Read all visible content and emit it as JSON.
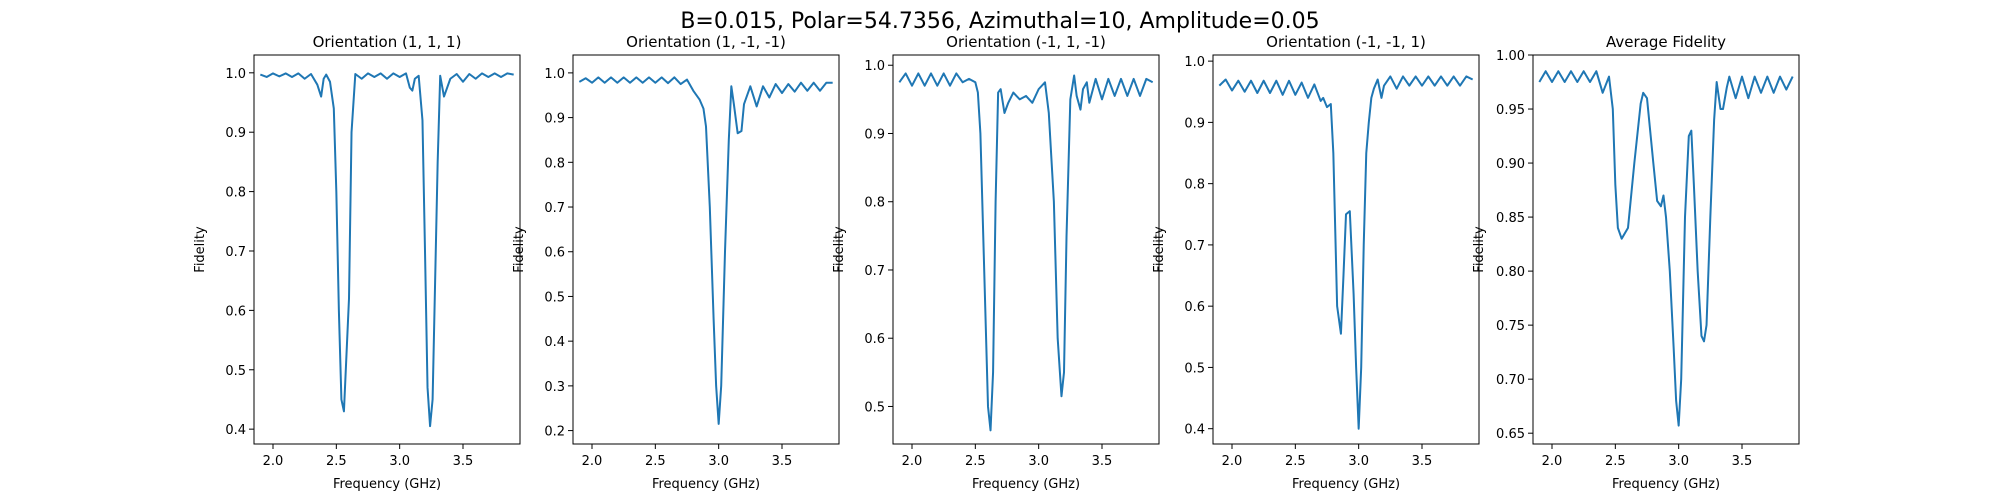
{
  "suptitle": "B=0.015, Polar=54.7356, Azimuthal=10, Amplitude=0.05",
  "line_color": "#1f77b4",
  "chart_data": [
    {
      "type": "line",
      "title": "Orientation (1, 1, 1)",
      "xlabel": "Frequency (GHz)",
      "ylabel": "Fidelity",
      "xlim": [
        1.85,
        3.95
      ],
      "ylim": [
        0.375,
        1.03
      ],
      "xticks": [
        2.0,
        2.5,
        3.0,
        3.5
      ],
      "yticks": [
        0.4,
        0.5,
        0.6,
        0.7,
        0.8,
        0.9,
        1.0
      ],
      "ytick_decimals": 1,
      "series": [
        {
          "x": [
            1.9,
            1.95,
            2.0,
            2.05,
            2.1,
            2.15,
            2.2,
            2.25,
            2.3,
            2.35,
            2.38,
            2.4,
            2.42,
            2.45,
            2.48,
            2.5,
            2.52,
            2.54,
            2.56,
            2.6,
            2.62,
            2.65,
            2.7,
            2.75,
            2.8,
            2.85,
            2.9,
            2.95,
            3.0,
            3.05,
            3.08,
            3.1,
            3.12,
            3.15,
            3.18,
            3.2,
            3.22,
            3.24,
            3.26,
            3.3,
            3.32,
            3.35,
            3.4,
            3.45,
            3.5,
            3.55,
            3.6,
            3.65,
            3.7,
            3.75,
            3.8,
            3.85,
            3.9
          ],
          "y": [
            0.997,
            0.993,
            0.999,
            0.994,
            0.999,
            0.993,
            0.999,
            0.99,
            0.998,
            0.98,
            0.96,
            0.99,
            0.997,
            0.985,
            0.94,
            0.8,
            0.6,
            0.45,
            0.43,
            0.62,
            0.9,
            0.998,
            0.99,
            0.999,
            0.993,
            0.999,
            0.99,
            0.999,
            0.993,
            0.999,
            0.975,
            0.97,
            0.99,
            0.995,
            0.92,
            0.7,
            0.47,
            0.405,
            0.45,
            0.85,
            0.995,
            0.96,
            0.99,
            0.998,
            0.985,
            0.998,
            0.99,
            0.999,
            0.993,
            0.999,
            0.993,
            0.999,
            0.997
          ]
        }
      ]
    },
    {
      "type": "line",
      "title": "Orientation (1, -1, -1)",
      "xlabel": "Frequency (GHz)",
      "ylabel": "Fidelity",
      "xlim": [
        1.85,
        3.95
      ],
      "ylim": [
        0.17,
        1.04
      ],
      "xticks": [
        2.0,
        2.5,
        3.0,
        3.5
      ],
      "yticks": [
        0.2,
        0.3,
        0.4,
        0.5,
        0.6,
        0.7,
        0.8,
        0.9,
        1.0
      ],
      "ytick_decimals": 1,
      "series": [
        {
          "x": [
            1.9,
            1.95,
            2.0,
            2.05,
            2.1,
            2.15,
            2.2,
            2.25,
            2.3,
            2.35,
            2.4,
            2.45,
            2.5,
            2.55,
            2.6,
            2.65,
            2.7,
            2.75,
            2.8,
            2.85,
            2.88,
            2.9,
            2.93,
            2.96,
            2.98,
            3.0,
            3.02,
            3.05,
            3.08,
            3.1,
            3.12,
            3.15,
            3.18,
            3.2,
            3.25,
            3.3,
            3.35,
            3.4,
            3.45,
            3.5,
            3.55,
            3.6,
            3.65,
            3.7,
            3.75,
            3.8,
            3.85,
            3.9
          ],
          "y": [
            0.98,
            0.988,
            0.978,
            0.99,
            0.978,
            0.99,
            0.978,
            0.99,
            0.978,
            0.99,
            0.978,
            0.99,
            0.978,
            0.99,
            0.977,
            0.99,
            0.975,
            0.985,
            0.96,
            0.94,
            0.92,
            0.88,
            0.7,
            0.45,
            0.3,
            0.215,
            0.3,
            0.6,
            0.85,
            0.97,
            0.93,
            0.865,
            0.87,
            0.93,
            0.97,
            0.925,
            0.97,
            0.945,
            0.975,
            0.955,
            0.975,
            0.958,
            0.978,
            0.96,
            0.978,
            0.96,
            0.978,
            0.978
          ]
        }
      ]
    },
    {
      "type": "line",
      "title": "Orientation (-1, 1, -1)",
      "xlabel": "Frequency (GHz)",
      "ylabel": "Fidelity",
      "xlim": [
        1.85,
        3.95
      ],
      "ylim": [
        0.445,
        1.015
      ],
      "xticks": [
        2.0,
        2.5,
        3.0,
        3.5
      ],
      "yticks": [
        0.5,
        0.6,
        0.7,
        0.8,
        0.9,
        1.0
      ],
      "ytick_decimals": 1,
      "series": [
        {
          "x": [
            1.9,
            1.95,
            2.0,
            2.05,
            2.1,
            2.15,
            2.2,
            2.25,
            2.3,
            2.35,
            2.4,
            2.45,
            2.5,
            2.52,
            2.54,
            2.57,
            2.6,
            2.62,
            2.64,
            2.66,
            2.68,
            2.7,
            2.73,
            2.76,
            2.8,
            2.85,
            2.9,
            2.95,
            3.0,
            3.05,
            3.08,
            3.12,
            3.15,
            3.18,
            3.2,
            3.22,
            3.25,
            3.28,
            3.3,
            3.33,
            3.35,
            3.38,
            3.4,
            3.45,
            3.5,
            3.55,
            3.6,
            3.65,
            3.7,
            3.75,
            3.8,
            3.85,
            3.9
          ],
          "y": [
            0.975,
            0.988,
            0.97,
            0.988,
            0.97,
            0.988,
            0.97,
            0.988,
            0.97,
            0.988,
            0.975,
            0.98,
            0.975,
            0.96,
            0.9,
            0.7,
            0.5,
            0.465,
            0.55,
            0.8,
            0.96,
            0.965,
            0.93,
            0.945,
            0.96,
            0.95,
            0.955,
            0.945,
            0.965,
            0.975,
            0.93,
            0.8,
            0.6,
            0.515,
            0.55,
            0.75,
            0.95,
            0.985,
            0.955,
            0.935,
            0.965,
            0.975,
            0.945,
            0.98,
            0.95,
            0.98,
            0.955,
            0.98,
            0.955,
            0.98,
            0.955,
            0.98,
            0.975
          ]
        }
      ]
    },
    {
      "type": "line",
      "title": "Orientation (-1, -1, 1)",
      "xlabel": "Frequency (GHz)",
      "ylabel": "Fidelity",
      "xlim": [
        1.85,
        3.95
      ],
      "ylim": [
        0.375,
        1.01
      ],
      "xticks": [
        2.0,
        2.5,
        3.0,
        3.5
      ],
      "yticks": [
        0.4,
        0.5,
        0.6,
        0.7,
        0.8,
        0.9,
        1.0
      ],
      "ytick_decimals": 1,
      "series": [
        {
          "x": [
            1.9,
            1.95,
            2.0,
            2.05,
            2.1,
            2.15,
            2.2,
            2.25,
            2.3,
            2.35,
            2.4,
            2.45,
            2.5,
            2.55,
            2.6,
            2.65,
            2.7,
            2.72,
            2.75,
            2.78,
            2.8,
            2.83,
            2.86,
            2.88,
            2.9,
            2.93,
            2.96,
            2.98,
            3.0,
            3.02,
            3.04,
            3.06,
            3.08,
            3.1,
            3.12,
            3.15,
            3.18,
            3.2,
            3.25,
            3.3,
            3.35,
            3.4,
            3.45,
            3.5,
            3.55,
            3.6,
            3.65,
            3.7,
            3.75,
            3.8,
            3.85,
            3.9
          ],
          "y": [
            0.96,
            0.97,
            0.952,
            0.968,
            0.95,
            0.968,
            0.948,
            0.968,
            0.948,
            0.968,
            0.945,
            0.968,
            0.945,
            0.965,
            0.94,
            0.962,
            0.935,
            0.94,
            0.925,
            0.93,
            0.85,
            0.6,
            0.555,
            0.65,
            0.75,
            0.755,
            0.62,
            0.5,
            0.4,
            0.5,
            0.7,
            0.85,
            0.9,
            0.94,
            0.955,
            0.97,
            0.94,
            0.96,
            0.975,
            0.955,
            0.975,
            0.96,
            0.975,
            0.96,
            0.975,
            0.96,
            0.975,
            0.96,
            0.975,
            0.96,
            0.975,
            0.97
          ]
        }
      ]
    },
    {
      "type": "line",
      "title": "Average Fidelity",
      "xlabel": "Frequency (GHz)",
      "ylabel": "Fidelity",
      "xlim": [
        1.85,
        3.95
      ],
      "ylim": [
        0.64,
        1.0
      ],
      "xticks": [
        2.0,
        2.5,
        3.0,
        3.5
      ],
      "yticks": [
        0.65,
        0.7,
        0.75,
        0.8,
        0.85,
        0.9,
        0.95,
        1.0
      ],
      "ytick_decimals": 2,
      "series": [
        {
          "x": [
            1.9,
            1.95,
            2.0,
            2.05,
            2.1,
            2.15,
            2.2,
            2.25,
            2.3,
            2.35,
            2.4,
            2.45,
            2.48,
            2.5,
            2.52,
            2.55,
            2.6,
            2.65,
            2.7,
            2.72,
            2.75,
            2.8,
            2.83,
            2.86,
            2.88,
            2.9,
            2.93,
            2.96,
            2.98,
            3.0,
            3.02,
            3.05,
            3.08,
            3.1,
            3.12,
            3.15,
            3.18,
            3.2,
            3.22,
            3.25,
            3.28,
            3.3,
            3.33,
            3.35,
            3.38,
            3.4,
            3.45,
            3.5,
            3.55,
            3.6,
            3.65,
            3.7,
            3.75,
            3.8,
            3.85,
            3.9
          ],
          "y": [
            0.975,
            0.985,
            0.975,
            0.985,
            0.975,
            0.985,
            0.975,
            0.985,
            0.975,
            0.985,
            0.965,
            0.98,
            0.95,
            0.88,
            0.84,
            0.83,
            0.84,
            0.9,
            0.955,
            0.965,
            0.96,
            0.9,
            0.865,
            0.86,
            0.87,
            0.85,
            0.8,
            0.73,
            0.68,
            0.657,
            0.7,
            0.85,
            0.925,
            0.93,
            0.88,
            0.8,
            0.74,
            0.735,
            0.75,
            0.85,
            0.94,
            0.975,
            0.95,
            0.95,
            0.97,
            0.98,
            0.96,
            0.98,
            0.96,
            0.98,
            0.965,
            0.98,
            0.965,
            0.98,
            0.968,
            0.98
          ]
        }
      ]
    }
  ]
}
